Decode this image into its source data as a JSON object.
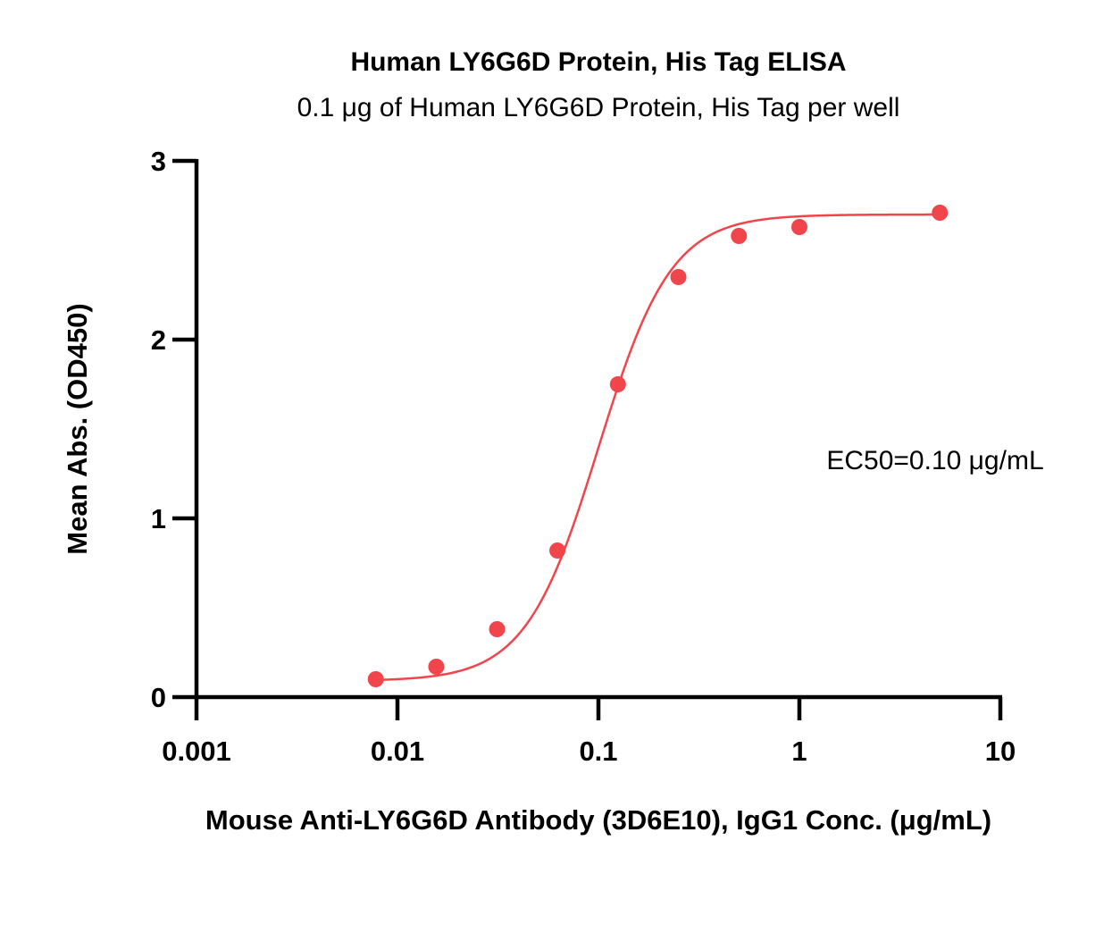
{
  "chart_data": {
    "type": "scatter",
    "title": "Human LY6G6D Protein, His Tag ELISA",
    "subtitle": "0.1 μg of Human LY6G6D Protein, His Tag per well",
    "xlabel": "Mouse Anti-LY6G6D Antibody (3D6E10), IgG1 Conc. (μg/mL)",
    "ylabel": "Mean Abs. (OD450)",
    "x_scale": "log",
    "xlim": [
      0.001,
      10
    ],
    "ylim": [
      0,
      3
    ],
    "x_ticks": [
      "0.001",
      "0.01",
      "0.1",
      "1",
      "10"
    ],
    "y_ticks": [
      "0",
      "1",
      "2",
      "3"
    ],
    "grid": false,
    "annotation": "EC50=0.10 μg/mL",
    "series": [
      {
        "color": "#f0454b",
        "x": [
          0.0078,
          0.0156,
          0.0313,
          0.0625,
          0.125,
          0.25,
          0.5,
          1,
          5
        ],
        "y": [
          0.1,
          0.17,
          0.38,
          0.82,
          1.75,
          2.35,
          2.58,
          2.63,
          2.71
        ],
        "fit": {
          "model": "4PL",
          "bottom": 0.09,
          "top": 2.7,
          "ec50": 0.1,
          "hill": 2.4
        }
      }
    ]
  }
}
